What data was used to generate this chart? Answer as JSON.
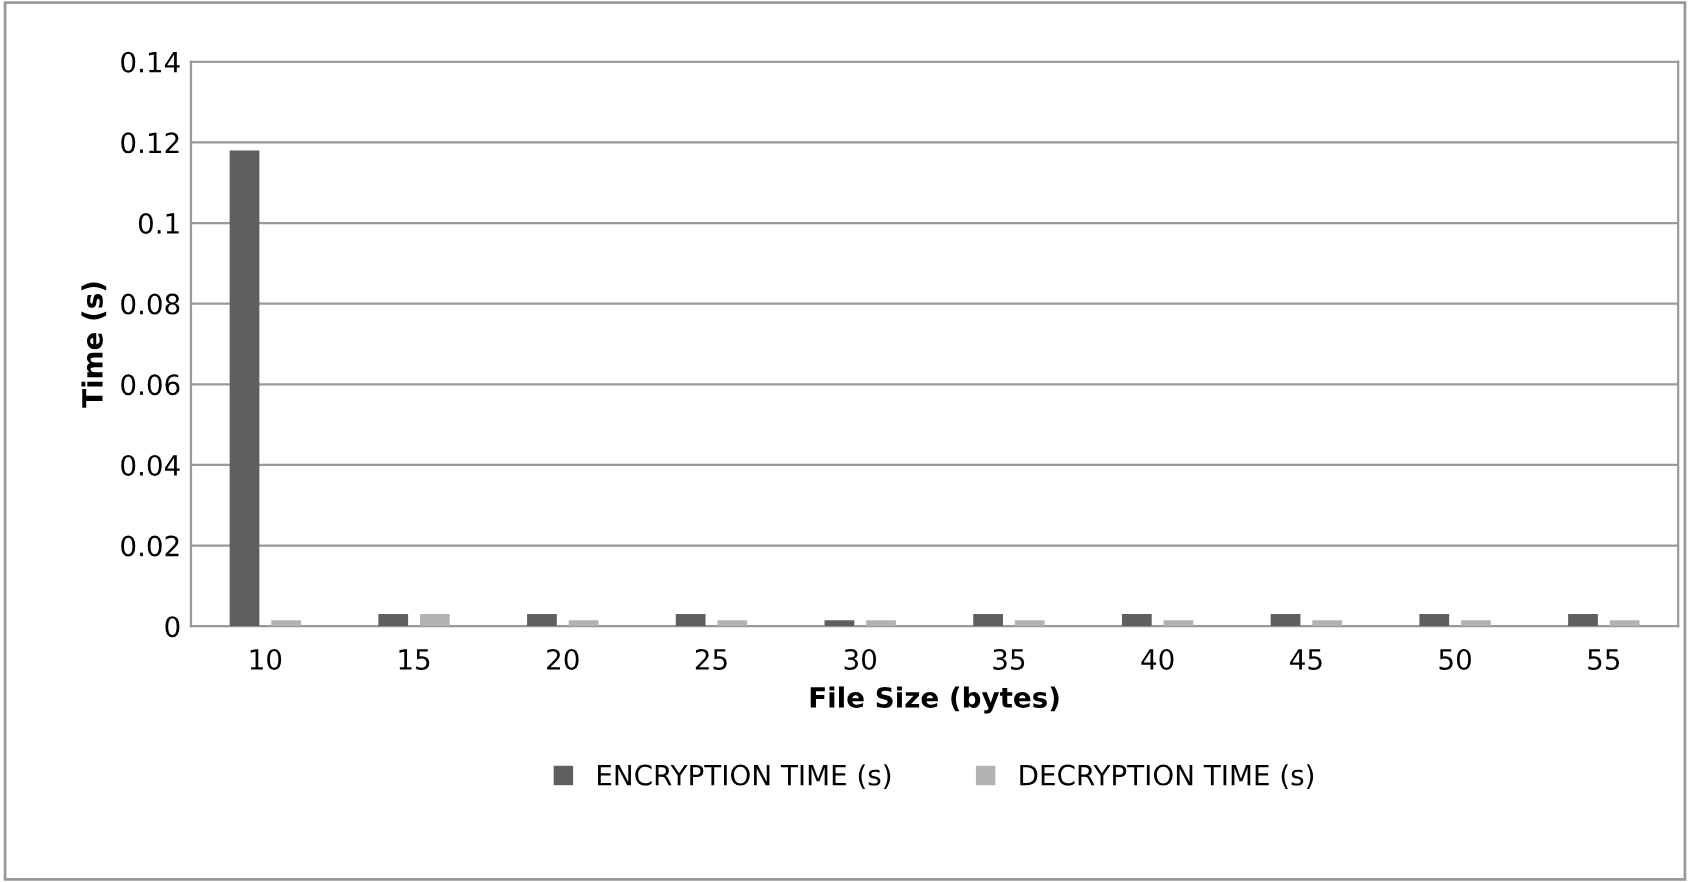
{
  "chart_data": {
    "type": "bar",
    "xlabel": "File Size (bytes)",
    "ylabel": "Time (s)",
    "categories": [
      "10",
      "15",
      "20",
      "25",
      "30",
      "35",
      "40",
      "45",
      "50",
      "55"
    ],
    "series": [
      {
        "name": "ENCRYPTION TIME (s)",
        "color": "#5f5f5f",
        "values": [
          0.118,
          0.003,
          0.003,
          0.003,
          0.0015,
          0.003,
          0.003,
          0.003,
          0.003,
          0.003
        ]
      },
      {
        "name": "DECRYPTION TIME (s)",
        "color": "#b2b2b2",
        "values": [
          0.0015,
          0.003,
          0.0015,
          0.0015,
          0.0015,
          0.0015,
          0.0015,
          0.0015,
          0.0015,
          0.0015
        ]
      }
    ],
    "ylim": [
      0,
      0.14
    ],
    "yticks": [
      0,
      0.02,
      0.04,
      0.06,
      0.08,
      0.1,
      0.12,
      0.14
    ],
    "grid": "y",
    "legend": "bottom"
  }
}
